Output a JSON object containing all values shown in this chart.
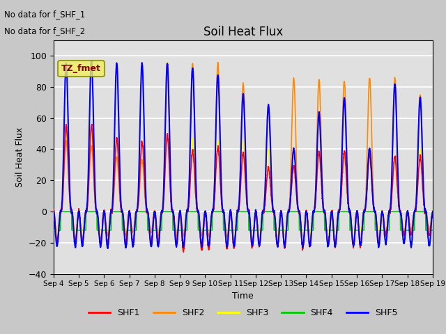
{
  "title": "Soil Heat Flux",
  "ylabel": "Soil Heat Flux",
  "xlabel": "Time",
  "ylim": [
    -40,
    110
  ],
  "annotations": [
    "No data for f_SHF_1",
    "No data for f_SHF_2"
  ],
  "legend_label": "TZ_fmet",
  "legend_entries": [
    "SHF1",
    "SHF2",
    "SHF3",
    "SHF4",
    "SHF5"
  ],
  "legend_colors": [
    "#ff0000",
    "#ff8800",
    "#ffff00",
    "#00cc00",
    "#0000ff"
  ],
  "xticklabels": [
    "Sep 4",
    "Sep 5",
    "Sep 6",
    "Sep 7",
    "Sep 8",
    "Sep 9",
    "Sep 10",
    "Sep 11",
    "Sep 12",
    "Sep 13",
    "Sep 14",
    "Sep 15",
    "Sep 16",
    "Sep 17",
    "Sep 18",
    "Sep 19"
  ],
  "yticks": [
    -40,
    -20,
    0,
    20,
    40,
    60,
    80,
    100
  ],
  "num_days": 15,
  "shf1_peaks": [
    55,
    55,
    47,
    45,
    49,
    39,
    41,
    38,
    28,
    29,
    38,
    38,
    36,
    35,
    35
  ],
  "shf1_troughs": [
    -20,
    -20,
    -20,
    -20,
    -20,
    -25,
    -24,
    -23,
    -22,
    -23,
    -22,
    -22,
    -22,
    -15,
    -15
  ],
  "shf2_peaks": [
    45,
    42,
    35,
    33,
    95,
    95,
    95,
    82,
    68,
    85,
    85,
    84,
    86,
    86,
    75
  ],
  "shf2_troughs": [
    -18,
    -18,
    -15,
    -13,
    -15,
    -15,
    -16,
    -21,
    -22,
    -22,
    -22,
    -20,
    -18,
    -15,
    -12
  ],
  "shf3_peaks": [
    50,
    50,
    47,
    95,
    95,
    47,
    45,
    45,
    40,
    38,
    38,
    38,
    36,
    36,
    40
  ],
  "shf3_troughs": [
    -14,
    -14,
    -14,
    -14,
    -15,
    -14,
    -15,
    -15,
    -14,
    -14,
    -14,
    -14,
    -12,
    -12,
    -12
  ],
  "shf4_level": -12,
  "shf5_peaks": [
    95,
    97,
    95,
    95,
    95,
    92,
    88,
    75,
    68,
    40,
    63,
    73,
    40,
    82,
    73
  ],
  "shf5_troughs": [
    -22,
    -22,
    -23,
    -22,
    -22,
    -22,
    -22,
    -22,
    -22,
    -22,
    -22,
    -22,
    -22,
    -20,
    -22
  ],
  "day_start": 0.28,
  "day_end": 0.72,
  "pts_per_day": 144
}
